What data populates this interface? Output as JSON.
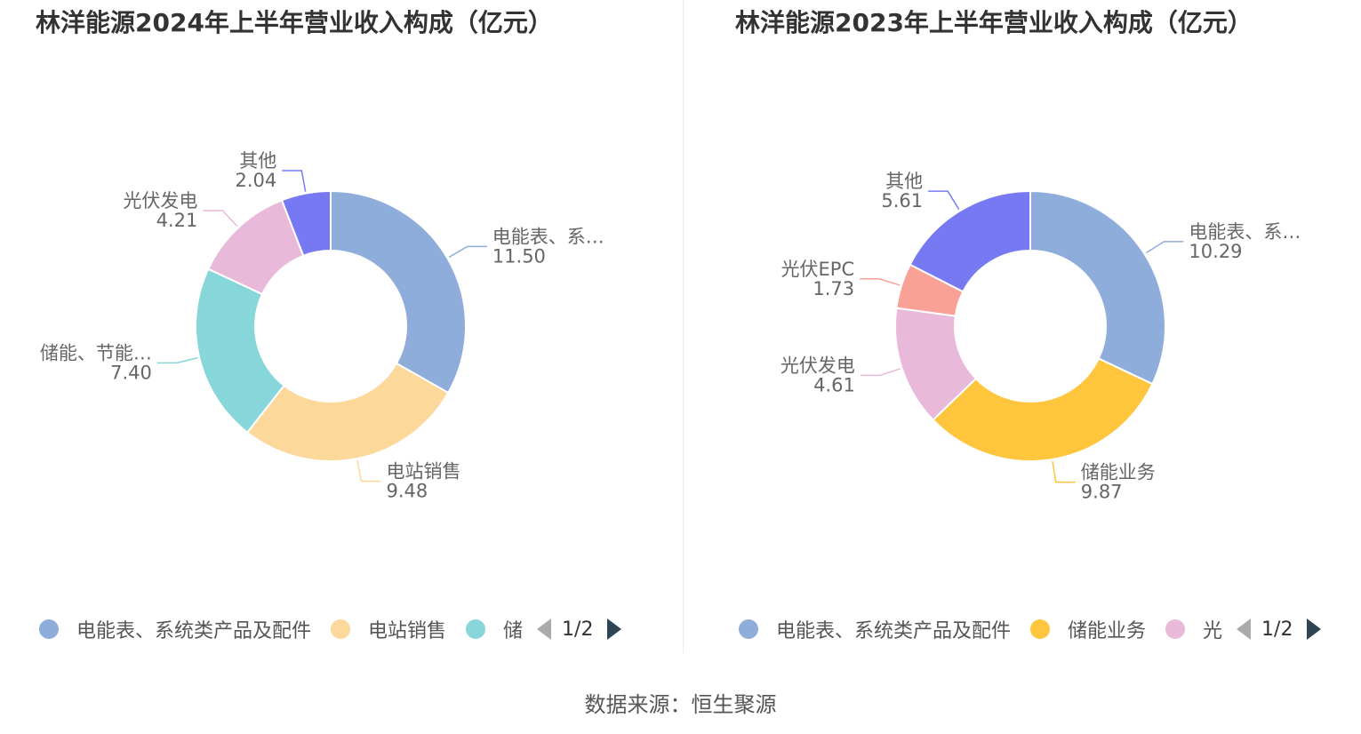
{
  "chart_data": [
    {
      "type": "pie",
      "variant": "donut",
      "title": "林洋能源2024年上半年营业收入构成（亿元）",
      "slices": [
        {
          "name": "电能表、系统类产品及配件",
          "label": "电能表、系…",
          "value": 11.5,
          "display": "11.50",
          "color": "#8fadda"
        },
        {
          "name": "电站销售",
          "label": "电站销售",
          "value": 9.48,
          "display": "9.48",
          "color": "#fdd89b"
        },
        {
          "name": "储能、节能…",
          "label": "储能、节能…",
          "value": 7.4,
          "display": "7.40",
          "color": "#87d6d9"
        },
        {
          "name": "光伏发电",
          "label": "光伏发电",
          "value": 4.21,
          "display": "4.21",
          "color": "#e8b9d9"
        },
        {
          "name": "其他",
          "label": "其他",
          "value": 2.04,
          "display": "2.04",
          "color": "#7779f3"
        }
      ],
      "legend": {
        "items": [
          {
            "name": "电能表、系统类产品及配件",
            "color": "#8fadda"
          },
          {
            "name": "电站销售",
            "color": "#fdd89b"
          },
          {
            "name": "储",
            "color": "#87d6d9"
          }
        ],
        "page": "1/2"
      }
    },
    {
      "type": "pie",
      "variant": "donut",
      "title": "林洋能源2023年上半年营业收入构成（亿元）",
      "slices": [
        {
          "name": "电能表、系统类产品及配件",
          "label": "电能表、系…",
          "value": 10.29,
          "display": "10.29",
          "color": "#8fadda"
        },
        {
          "name": "储能业务",
          "label": "储能业务",
          "value": 9.87,
          "display": "9.87",
          "color": "#fec53d"
        },
        {
          "name": "光伏发电",
          "label": "光伏发电",
          "value": 4.61,
          "display": "4.61",
          "color": "#e8b9d9"
        },
        {
          "name": "光伏EPC",
          "label": "光伏EPC",
          "value": 1.73,
          "display": "1.73",
          "color": "#f9a097"
        },
        {
          "name": "其他",
          "label": "其他",
          "value": 5.61,
          "display": "5.61",
          "color": "#7779f3"
        }
      ],
      "legend": {
        "items": [
          {
            "name": "电能表、系统类产品及配件",
            "color": "#8fadda"
          },
          {
            "name": "储能业务",
            "color": "#fec53d"
          },
          {
            "name": "光",
            "color": "#e8b9d9"
          }
        ],
        "page": "1/2"
      }
    }
  ],
  "source": "数据来源：恒生聚源"
}
